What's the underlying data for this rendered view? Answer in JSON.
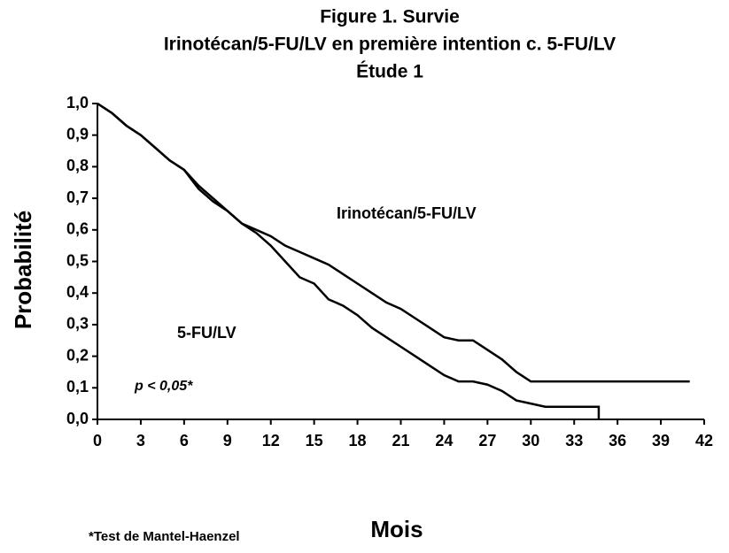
{
  "chart_data": {
    "type": "line",
    "title": "Figure 1. Survie",
    "subtitle": [
      "Irinotécan/5-FU/LV en première intention c. 5-FU/LV",
      "Étude 1"
    ],
    "xlabel": "Mois",
    "ylabel": "Probabilité",
    "xlim": [
      0,
      42
    ],
    "xticks": [
      0,
      3,
      6,
      9,
      12,
      15,
      18,
      21,
      24,
      27,
      30,
      33,
      36,
      39,
      42
    ],
    "ylim": [
      0,
      1
    ],
    "yticks": [
      {
        "value": 0,
        "label": "0,0"
      },
      {
        "value": 0.1,
        "label": "0,1"
      },
      {
        "value": 0.2,
        "label": "0,2"
      },
      {
        "value": 0.3,
        "label": "0,3"
      },
      {
        "value": 0.4,
        "label": "0,4"
      },
      {
        "value": 0.5,
        "label": "0,5"
      },
      {
        "value": 0.6,
        "label": "0,6"
      },
      {
        "value": 0.7,
        "label": "0,7"
      },
      {
        "value": 0.8,
        "label": "0,8"
      },
      {
        "value": 0.9,
        "label": "0,9"
      },
      {
        "value": 1,
        "label": "1,0"
      }
    ],
    "series": [
      {
        "name": "Irinotécan/5-FU/LV",
        "color": "#000000",
        "x": [
          0,
          1,
          2,
          3,
          4,
          5,
          6,
          7,
          8,
          9,
          10,
          11,
          12,
          13,
          14,
          15,
          16,
          17,
          18,
          19,
          20,
          21,
          22,
          23,
          24,
          25,
          26,
          27,
          28,
          29,
          30,
          31,
          35,
          41
        ],
        "values": [
          1.0,
          0.97,
          0.93,
          0.9,
          0.86,
          0.82,
          0.79,
          0.73,
          0.69,
          0.66,
          0.62,
          0.6,
          0.58,
          0.55,
          0.53,
          0.51,
          0.49,
          0.46,
          0.43,
          0.4,
          0.37,
          0.35,
          0.32,
          0.29,
          0.26,
          0.25,
          0.25,
          0.22,
          0.19,
          0.15,
          0.12,
          0.12,
          0.12,
          0.12
        ]
      },
      {
        "name": "5-FU/LV",
        "color": "#000000",
        "x": [
          0,
          1,
          2,
          3,
          4,
          5,
          6,
          7,
          8,
          9,
          10,
          11,
          12,
          13,
          14,
          15,
          16,
          17,
          18,
          19,
          20,
          21,
          22,
          23,
          24,
          25,
          26,
          27,
          28,
          29,
          30,
          31,
          34.7,
          34.7
        ],
        "values": [
          1.0,
          0.97,
          0.93,
          0.9,
          0.86,
          0.82,
          0.79,
          0.74,
          0.7,
          0.66,
          0.62,
          0.59,
          0.55,
          0.5,
          0.45,
          0.43,
          0.38,
          0.36,
          0.33,
          0.29,
          0.26,
          0.23,
          0.2,
          0.17,
          0.14,
          0.12,
          0.12,
          0.11,
          0.09,
          0.06,
          0.05,
          0.04,
          0.04,
          0.0
        ]
      }
    ],
    "annotations": [
      "p < 0,05*",
      "*Test de Mantel-Haenzel"
    ]
  }
}
